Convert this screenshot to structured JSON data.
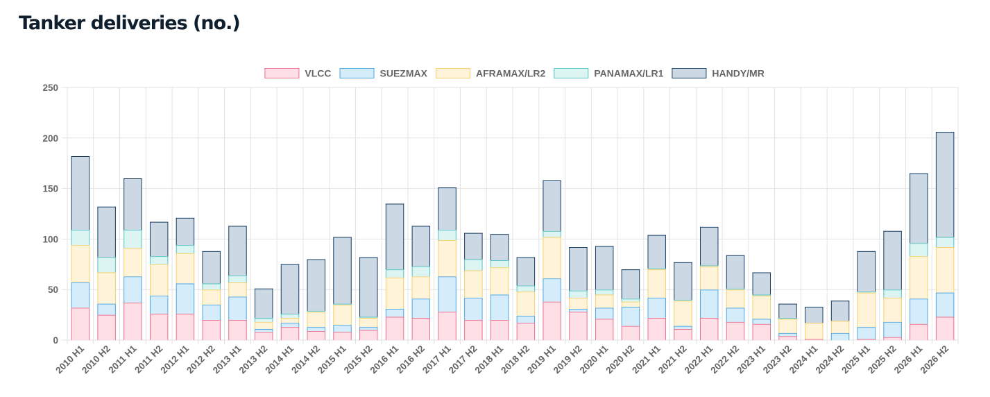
{
  "title": "Tanker deliveries (no.)",
  "chart_data": {
    "type": "bar",
    "stacked": true,
    "title": "Tanker deliveries (no.)",
    "xlabel": "",
    "ylabel": "",
    "ylim": [
      0,
      250
    ],
    "yticks": [
      0,
      50,
      100,
      150,
      200,
      250
    ],
    "grid": true,
    "legend_position": "top",
    "categories": [
      "2010 H1",
      "2010 H2",
      "2011 H1",
      "2011 H2",
      "2012 H1",
      "2012 H2",
      "2013 H1",
      "2013 H2",
      "2014 H1",
      "2014 H2",
      "2015 H1",
      "2015 H2",
      "2016 H1",
      "2016 H2",
      "2017 H1",
      "2017 H2",
      "2018 H1",
      "2018 H2",
      "2019 H1",
      "2019 H2",
      "2020 H1",
      "2020 H2",
      "2021 H1",
      "2021 H2",
      "2022 H1",
      "2022 H2",
      "2023 H1",
      "2023 H2",
      "2024 H1",
      "2024 H2",
      "2025 H1",
      "2025 H2",
      "2026 H1",
      "2026 H2"
    ],
    "series": [
      {
        "name": "VLCC",
        "fill": "#ffdfe6",
        "stroke": "#ec6f8e",
        "values": [
          32,
          25,
          37,
          26,
          26,
          20,
          20,
          8,
          13,
          9,
          8,
          10,
          23,
          22,
          28,
          20,
          20,
          17,
          38,
          28,
          21,
          14,
          22,
          11,
          22,
          18,
          16,
          4,
          1,
          0,
          1,
          3,
          16,
          23
        ]
      },
      {
        "name": "SUEZMAX",
        "fill": "#d5ecfb",
        "stroke": "#4ea6e0",
        "values": [
          25,
          11,
          26,
          18,
          30,
          15,
          23,
          3,
          4,
          4,
          7,
          3,
          8,
          19,
          35,
          22,
          25,
          7,
          23,
          3,
          11,
          19,
          20,
          3,
          28,
          14,
          5,
          3,
          0,
          7,
          12,
          15,
          25,
          24
        ]
      },
      {
        "name": "AFRAMAX/LR2",
        "fill": "#fff4da",
        "stroke": "#f7cf6b",
        "values": [
          37,
          31,
          28,
          31,
          30,
          15,
          14,
          7,
          5,
          15,
          20,
          9,
          31,
          22,
          36,
          27,
          27,
          24,
          41,
          11,
          13,
          5,
          28,
          25,
          23,
          18,
          23,
          14,
          16,
          12,
          34,
          24,
          42,
          45
        ]
      },
      {
        "name": "PANAMAX/LR1",
        "fill": "#dcf5f2",
        "stroke": "#55c2c2",
        "values": [
          15,
          15,
          18,
          8,
          8,
          6,
          7,
          4,
          4,
          1,
          1,
          1,
          8,
          10,
          10,
          11,
          7,
          6,
          6,
          7,
          5,
          3,
          1,
          1,
          1,
          1,
          1,
          1,
          0,
          0,
          1,
          8,
          13,
          10
        ]
      },
      {
        "name": "HANDY/MR",
        "fill": "#ccd8e3",
        "stroke": "#173e64",
        "values": [
          73,
          50,
          51,
          34,
          27,
          32,
          49,
          29,
          49,
          51,
          66,
          59,
          65,
          40,
          42,
          26,
          26,
          28,
          50,
          43,
          43,
          29,
          33,
          37,
          38,
          33,
          22,
          14,
          16,
          20,
          40,
          58,
          69,
          104
        ]
      }
    ]
  }
}
